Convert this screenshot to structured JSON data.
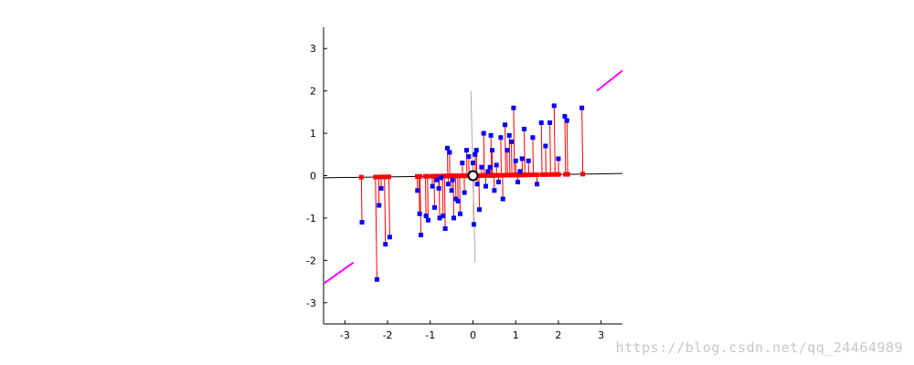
{
  "chart_data": {
    "type": "scatter",
    "title": "",
    "xlabel": "",
    "ylabel": "",
    "xlim": [
      -3.5,
      3.5
    ],
    "ylim": [
      -3.5,
      3.5
    ],
    "xticks": [
      "-3",
      "-2",
      "-1",
      "0",
      "1",
      "2",
      "3"
    ],
    "yticks": [
      "-3",
      "-2",
      "-1",
      "0",
      "1",
      "2",
      "3"
    ],
    "grid": false,
    "origin_marker": [
      0,
      0
    ],
    "principal_axis": {
      "from": [
        -3.5,
        -0.05
      ],
      "to": [
        3.5,
        0.05
      ]
    },
    "secondary_axis": {
      "from": [
        -0.05,
        2.0
      ],
      "to": [
        0.05,
        -2.05
      ]
    },
    "segments_magenta": [
      {
        "from": [
          -3.5,
          -2.55
        ],
        "to": [
          -2.8,
          -2.05
        ]
      },
      {
        "from": [
          2.9,
          2.0
        ],
        "to": [
          3.5,
          2.48
        ]
      }
    ],
    "colors": {
      "data_points": "#0000ff",
      "projections": "#ff0000",
      "axis_line": "#000000",
      "secondary_axis": "#aaaaaa",
      "magenta": "#ff00ff"
    },
    "series": [
      {
        "x": [
          -2.6,
          -2.25,
          -2.2,
          -2.15,
          -2.05,
          -1.95,
          -1.3,
          -1.25,
          -1.22,
          -1.1,
          -1.05,
          -0.95,
          -0.9,
          -0.85,
          -0.8,
          -0.78,
          -0.75,
          -0.7,
          -0.65,
          -0.6,
          -0.58,
          -0.55,
          -0.5,
          -0.48,
          -0.45,
          -0.4,
          -0.35,
          -0.3,
          -0.25,
          -0.2,
          -0.15,
          -0.1,
          -0.05,
          0.0,
          0.02,
          0.05,
          0.08,
          0.1,
          0.15,
          0.2,
          0.25,
          0.3,
          0.35,
          0.4,
          0.42,
          0.45,
          0.5,
          0.55,
          0.6,
          0.65,
          0.7,
          0.75,
          0.8,
          0.85,
          0.9,
          0.95,
          1.0,
          1.05,
          1.1,
          1.15,
          1.2,
          1.3,
          1.4,
          1.5,
          1.6,
          1.7,
          1.8,
          1.9,
          2.0,
          2.15,
          2.2,
          2.55
        ],
        "y": [
          -1.1,
          -2.45,
          -0.7,
          -0.3,
          -1.62,
          -1.45,
          -0.35,
          -0.9,
          -1.4,
          -0.95,
          -1.05,
          -0.25,
          -0.75,
          -0.1,
          -0.3,
          -1.0,
          -0.05,
          -0.95,
          -1.25,
          0.65,
          -0.2,
          0.55,
          -0.35,
          -0.1,
          -1.0,
          -0.55,
          -0.6,
          -0.9,
          0.3,
          -0.4,
          0.6,
          0.45,
          0.05,
          0.3,
          -1.15,
          0.5,
          0.6,
          -0.2,
          -0.8,
          0.2,
          1.0,
          -0.25,
          0.1,
          0.2,
          0.95,
          0.6,
          -0.35,
          0.25,
          -0.15,
          0.9,
          -0.55,
          1.2,
          0.6,
          0.95,
          0.8,
          1.6,
          0.35,
          -0.15,
          0.1,
          0.4,
          1.1,
          0.35,
          0.9,
          -0.2,
          1.25,
          0.7,
          1.25,
          1.65,
          0.4,
          1.4,
          1.3,
          1.6
        ]
      }
    ]
  },
  "watermark": "https://blog.csdn.net/qq_24464989"
}
